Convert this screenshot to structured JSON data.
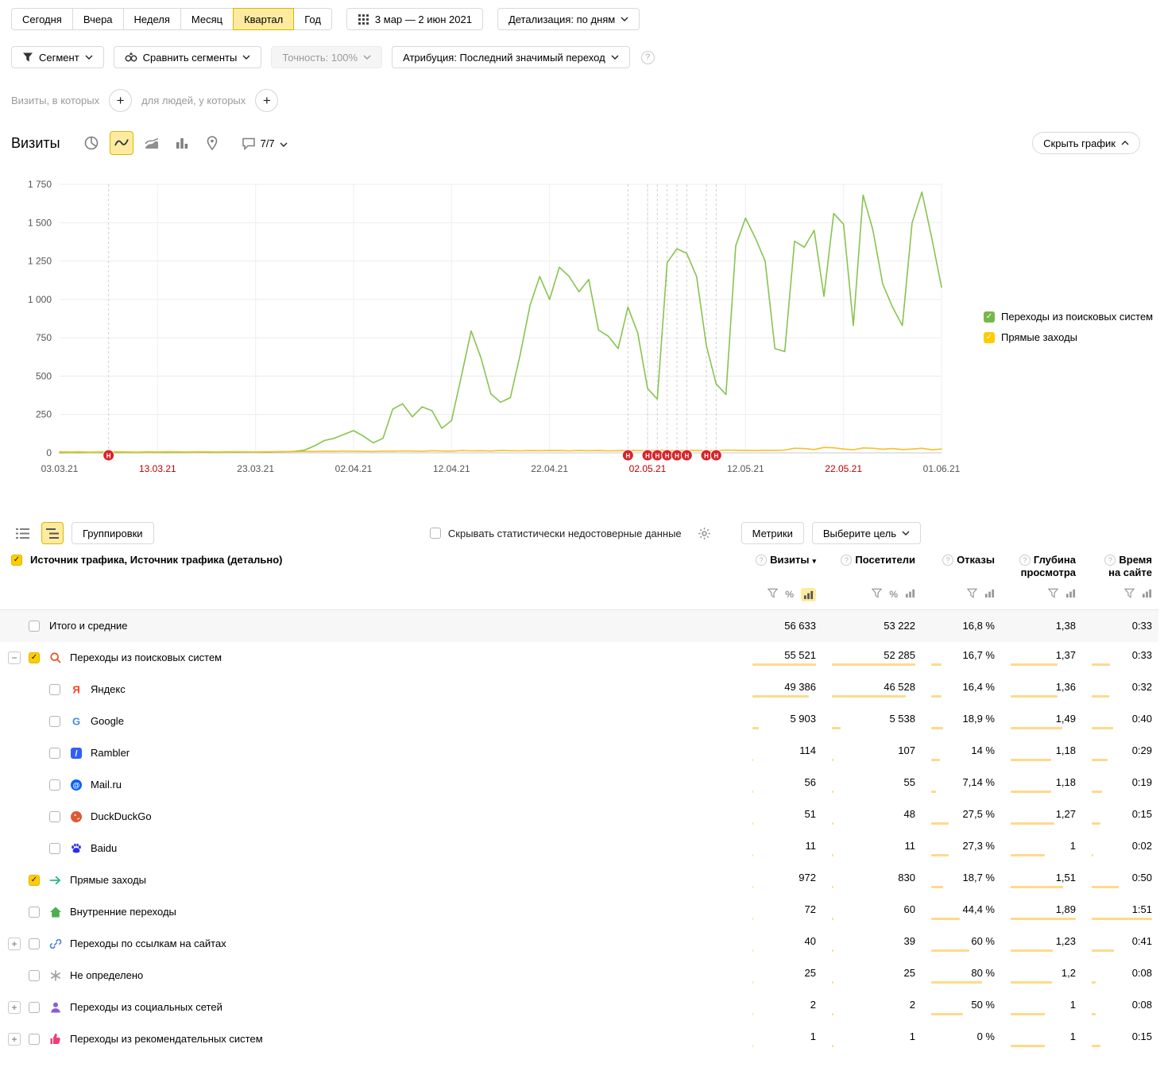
{
  "toolbar": {
    "periods": [
      "Сегодня",
      "Вчера",
      "Неделя",
      "Месяц",
      "Квартал",
      "Год"
    ],
    "active_period": "Квартал",
    "date_range": "3 мар — 2 июн 2021",
    "detail_label": "Детализация: по дням"
  },
  "filters": {
    "segment_label": "Сегмент",
    "compare_label": "Сравнить сегменты",
    "precision_label": "Точность: 100%",
    "attribution_label": "Атрибуция: Последний значимый переход"
  },
  "segment_builder": {
    "visits_label": "Визиты, в которых",
    "people_label": "для людей, у которых"
  },
  "chart_header": {
    "title": "Визиты",
    "comments_label": "7/7",
    "hide_graph_label": "Скрыть график"
  },
  "chart_data": {
    "type": "line",
    "title": "Визиты",
    "x_ticks": [
      "03.03.21",
      "13.03.21",
      "23.03.21",
      "02.04.21",
      "12.04.21",
      "22.04.21",
      "02.05.21",
      "12.05.21",
      "22.05.21",
      "01.06.21"
    ],
    "red_ticks": [
      "13.03.21",
      "02.05.21",
      "22.05.21"
    ],
    "y_ticks": [
      0,
      250,
      500,
      750,
      1000,
      1250,
      1500,
      1750
    ],
    "ylim": [
      0,
      1750
    ],
    "days_total": 90,
    "grid": true,
    "legend_position": "right",
    "annotation_label": "Н",
    "annotations_days": [
      5,
      58,
      60,
      61,
      62,
      63,
      64,
      66,
      67
    ],
    "series": [
      {
        "name": "Переходы из поисковых систем",
        "color": "#89c34f",
        "values": [
          0,
          2,
          1,
          3,
          2,
          1,
          2,
          3,
          2,
          4,
          3,
          2,
          4,
          3,
          5,
          4,
          3,
          5,
          4,
          6,
          5,
          4,
          6,
          8,
          10,
          18,
          45,
          80,
          95,
          120,
          145,
          110,
          65,
          95,
          285,
          320,
          235,
          300,
          275,
          160,
          210,
          500,
          795,
          620,
          385,
          330,
          360,
          640,
          960,
          1150,
          1000,
          1210,
          1150,
          1050,
          1130,
          800,
          760,
          680,
          950,
          780,
          420,
          350,
          1240,
          1330,
          1300,
          1150,
          700,
          450,
          380,
          1350,
          1530,
          1400,
          1250,
          680,
          660,
          1380,
          1340,
          1450,
          1020,
          1560,
          1490,
          830,
          1680,
          1450,
          1100,
          950,
          830,
          1500,
          1700,
          1400,
          1080
        ]
      },
      {
        "name": "Прямые заходы",
        "color": "#f5c02c",
        "values": [
          8,
          6,
          7,
          5,
          6,
          8,
          7,
          6,
          5,
          7,
          6,
          8,
          7,
          6,
          7,
          8,
          6,
          7,
          8,
          7,
          6,
          8,
          7,
          9,
          8,
          10,
          9,
          11,
          10,
          12,
          11,
          10,
          9,
          12,
          11,
          13,
          12,
          10,
          14,
          12,
          11,
          15,
          13,
          14,
          12,
          16,
          14,
          13,
          15,
          14,
          16,
          15,
          13,
          16,
          14,
          15,
          13,
          14,
          16,
          15,
          14,
          18,
          16,
          15,
          17,
          16,
          14,
          15,
          18,
          17,
          16,
          15,
          17,
          16,
          18,
          30,
          28,
          22,
          35,
          33,
          25,
          20,
          32,
          30,
          24,
          28,
          22,
          25,
          30,
          20,
          25
        ]
      }
    ]
  },
  "legend": [
    {
      "label": "Переходы из поисковых систем",
      "color": "#77b74a"
    },
    {
      "label": "Прямые заходы",
      "color": "#ffcc00"
    }
  ],
  "table_toolbar": {
    "groupings_label": "Группировки",
    "hide_unreliable_label": "Скрывать статистически недостоверные данные",
    "metrics_label": "Метрики",
    "goal_label": "Выберите цель"
  },
  "table": {
    "dimension_label": "Источник трафика, Источник трафика (детально)",
    "columns": [
      "Визиты",
      "Посетители",
      "Отказы",
      "Глубина просмотра",
      "Время на сайте"
    ],
    "rows": [
      {
        "label": "Итого и средние",
        "type": "total",
        "cells": [
          {
            "v": "56 633",
            "b": null
          },
          {
            "v": "53 222",
            "b": null
          },
          {
            "v": "16,8 %",
            "b": null
          },
          {
            "v": "1,38",
            "b": null
          },
          {
            "v": "0:33",
            "b": null
          }
        ]
      },
      {
        "label": "Переходы из поисковых систем",
        "icon": "search-engines-icon",
        "level": 0,
        "expander": "minus",
        "checked": true,
        "cells": [
          {
            "v": "55 521",
            "b": 100
          },
          {
            "v": "52 285",
            "b": 100
          },
          {
            "v": "16,7 %",
            "b": 16.7
          },
          {
            "v": "1,37",
            "b": 72
          },
          {
            "v": "0:33",
            "b": 30
          }
        ]
      },
      {
        "label": "Яндекс",
        "icon": "yandex-icon",
        "level": 1,
        "checked": false,
        "cells": [
          {
            "v": "49 386",
            "b": 89
          },
          {
            "v": "46 528",
            "b": 89
          },
          {
            "v": "16,4 %",
            "b": 16.4
          },
          {
            "v": "1,36",
            "b": 72
          },
          {
            "v": "0:32",
            "b": 29
          }
        ]
      },
      {
        "label": "Google",
        "icon": "google-icon",
        "level": 1,
        "checked": false,
        "cells": [
          {
            "v": "5 903",
            "b": 10.6
          },
          {
            "v": "5 538",
            "b": 10.6
          },
          {
            "v": "18,9 %",
            "b": 18.9
          },
          {
            "v": "1,49",
            "b": 79
          },
          {
            "v": "0:40",
            "b": 36
          }
        ]
      },
      {
        "label": "Rambler",
        "icon": "rambler-icon",
        "level": 1,
        "checked": false,
        "cells": [
          {
            "v": "114",
            "b": 0.3
          },
          {
            "v": "107",
            "b": 0.3
          },
          {
            "v": "14 %",
            "b": 14
          },
          {
            "v": "1,18",
            "b": 62
          },
          {
            "v": "0:29",
            "b": 26
          }
        ]
      },
      {
        "label": "Mail.ru",
        "icon": "mailru-icon",
        "level": 1,
        "checked": false,
        "cells": [
          {
            "v": "56",
            "b": 0.2
          },
          {
            "v": "55",
            "b": 0.2
          },
          {
            "v": "7,14 %",
            "b": 7.1
          },
          {
            "v": "1,18",
            "b": 62
          },
          {
            "v": "0:19",
            "b": 17
          }
        ]
      },
      {
        "label": "DuckDuckGo",
        "icon": "duckduckgo-icon",
        "level": 1,
        "checked": false,
        "cells": [
          {
            "v": "51",
            "b": 0.2
          },
          {
            "v": "48",
            "b": 0.2
          },
          {
            "v": "27,5 %",
            "b": 27.5
          },
          {
            "v": "1,27",
            "b": 67
          },
          {
            "v": "0:15",
            "b": 14
          }
        ]
      },
      {
        "label": "Baidu",
        "icon": "baidu-icon",
        "level": 1,
        "checked": false,
        "cells": [
          {
            "v": "11",
            "b": 0.1
          },
          {
            "v": "11",
            "b": 0.1
          },
          {
            "v": "27,3 %",
            "b": 27.3
          },
          {
            "v": "1",
            "b": 53
          },
          {
            "v": "0:02",
            "b": 2
          }
        ]
      },
      {
        "label": "Прямые заходы",
        "icon": "direct-icon",
        "level": 0,
        "checked": true,
        "cells": [
          {
            "v": "972",
            "b": 1.8
          },
          {
            "v": "830",
            "b": 1.6
          },
          {
            "v": "18,7 %",
            "b": 18.7
          },
          {
            "v": "1,51",
            "b": 80
          },
          {
            "v": "0:50",
            "b": 45
          }
        ]
      },
      {
        "label": "Внутренние переходы",
        "icon": "internal-icon",
        "level": 0,
        "checked": false,
        "cells": [
          {
            "v": "72",
            "b": 0.2
          },
          {
            "v": "60",
            "b": 0.2
          },
          {
            "v": "44,4 %",
            "b": 44.4
          },
          {
            "v": "1,89",
            "b": 100
          },
          {
            "v": "1:51",
            "b": 100
          }
        ]
      },
      {
        "label": "Переходы по ссылкам на сайтах",
        "icon": "site-links-icon",
        "level": 0,
        "expander": "plus",
        "checked": false,
        "cells": [
          {
            "v": "40",
            "b": 0.1
          },
          {
            "v": "39",
            "b": 0.1
          },
          {
            "v": "60 %",
            "b": 60
          },
          {
            "v": "1,23",
            "b": 65
          },
          {
            "v": "0:41",
            "b": 37
          }
        ]
      },
      {
        "label": "Не определено",
        "icon": "undefined-icon",
        "level": 0,
        "checked": false,
        "cells": [
          {
            "v": "25",
            "b": 0.1
          },
          {
            "v": "25",
            "b": 0.1
          },
          {
            "v": "80 %",
            "b": 80
          },
          {
            "v": "1,2",
            "b": 63
          },
          {
            "v": "0:08",
            "b": 7
          }
        ]
      },
      {
        "label": "Переходы из социальных сетей",
        "icon": "social-icon",
        "level": 0,
        "expander": "plus",
        "checked": false,
        "cells": [
          {
            "v": "2",
            "b": 0.05
          },
          {
            "v": "2",
            "b": 0.05
          },
          {
            "v": "50 %",
            "b": 50
          },
          {
            "v": "1",
            "b": 53
          },
          {
            "v": "0:08",
            "b": 7
          }
        ]
      },
      {
        "label": "Переходы из рекомендательных систем",
        "icon": "recommendation-icon",
        "level": 0,
        "expander": "plus",
        "checked": false,
        "cells": [
          {
            "v": "1",
            "b": 0.05
          },
          {
            "v": "1",
            "b": 0.05
          },
          {
            "v": "0 %",
            "b": 0
          },
          {
            "v": "1",
            "b": 53
          },
          {
            "v": "0:15",
            "b": 14
          }
        ]
      }
    ]
  }
}
